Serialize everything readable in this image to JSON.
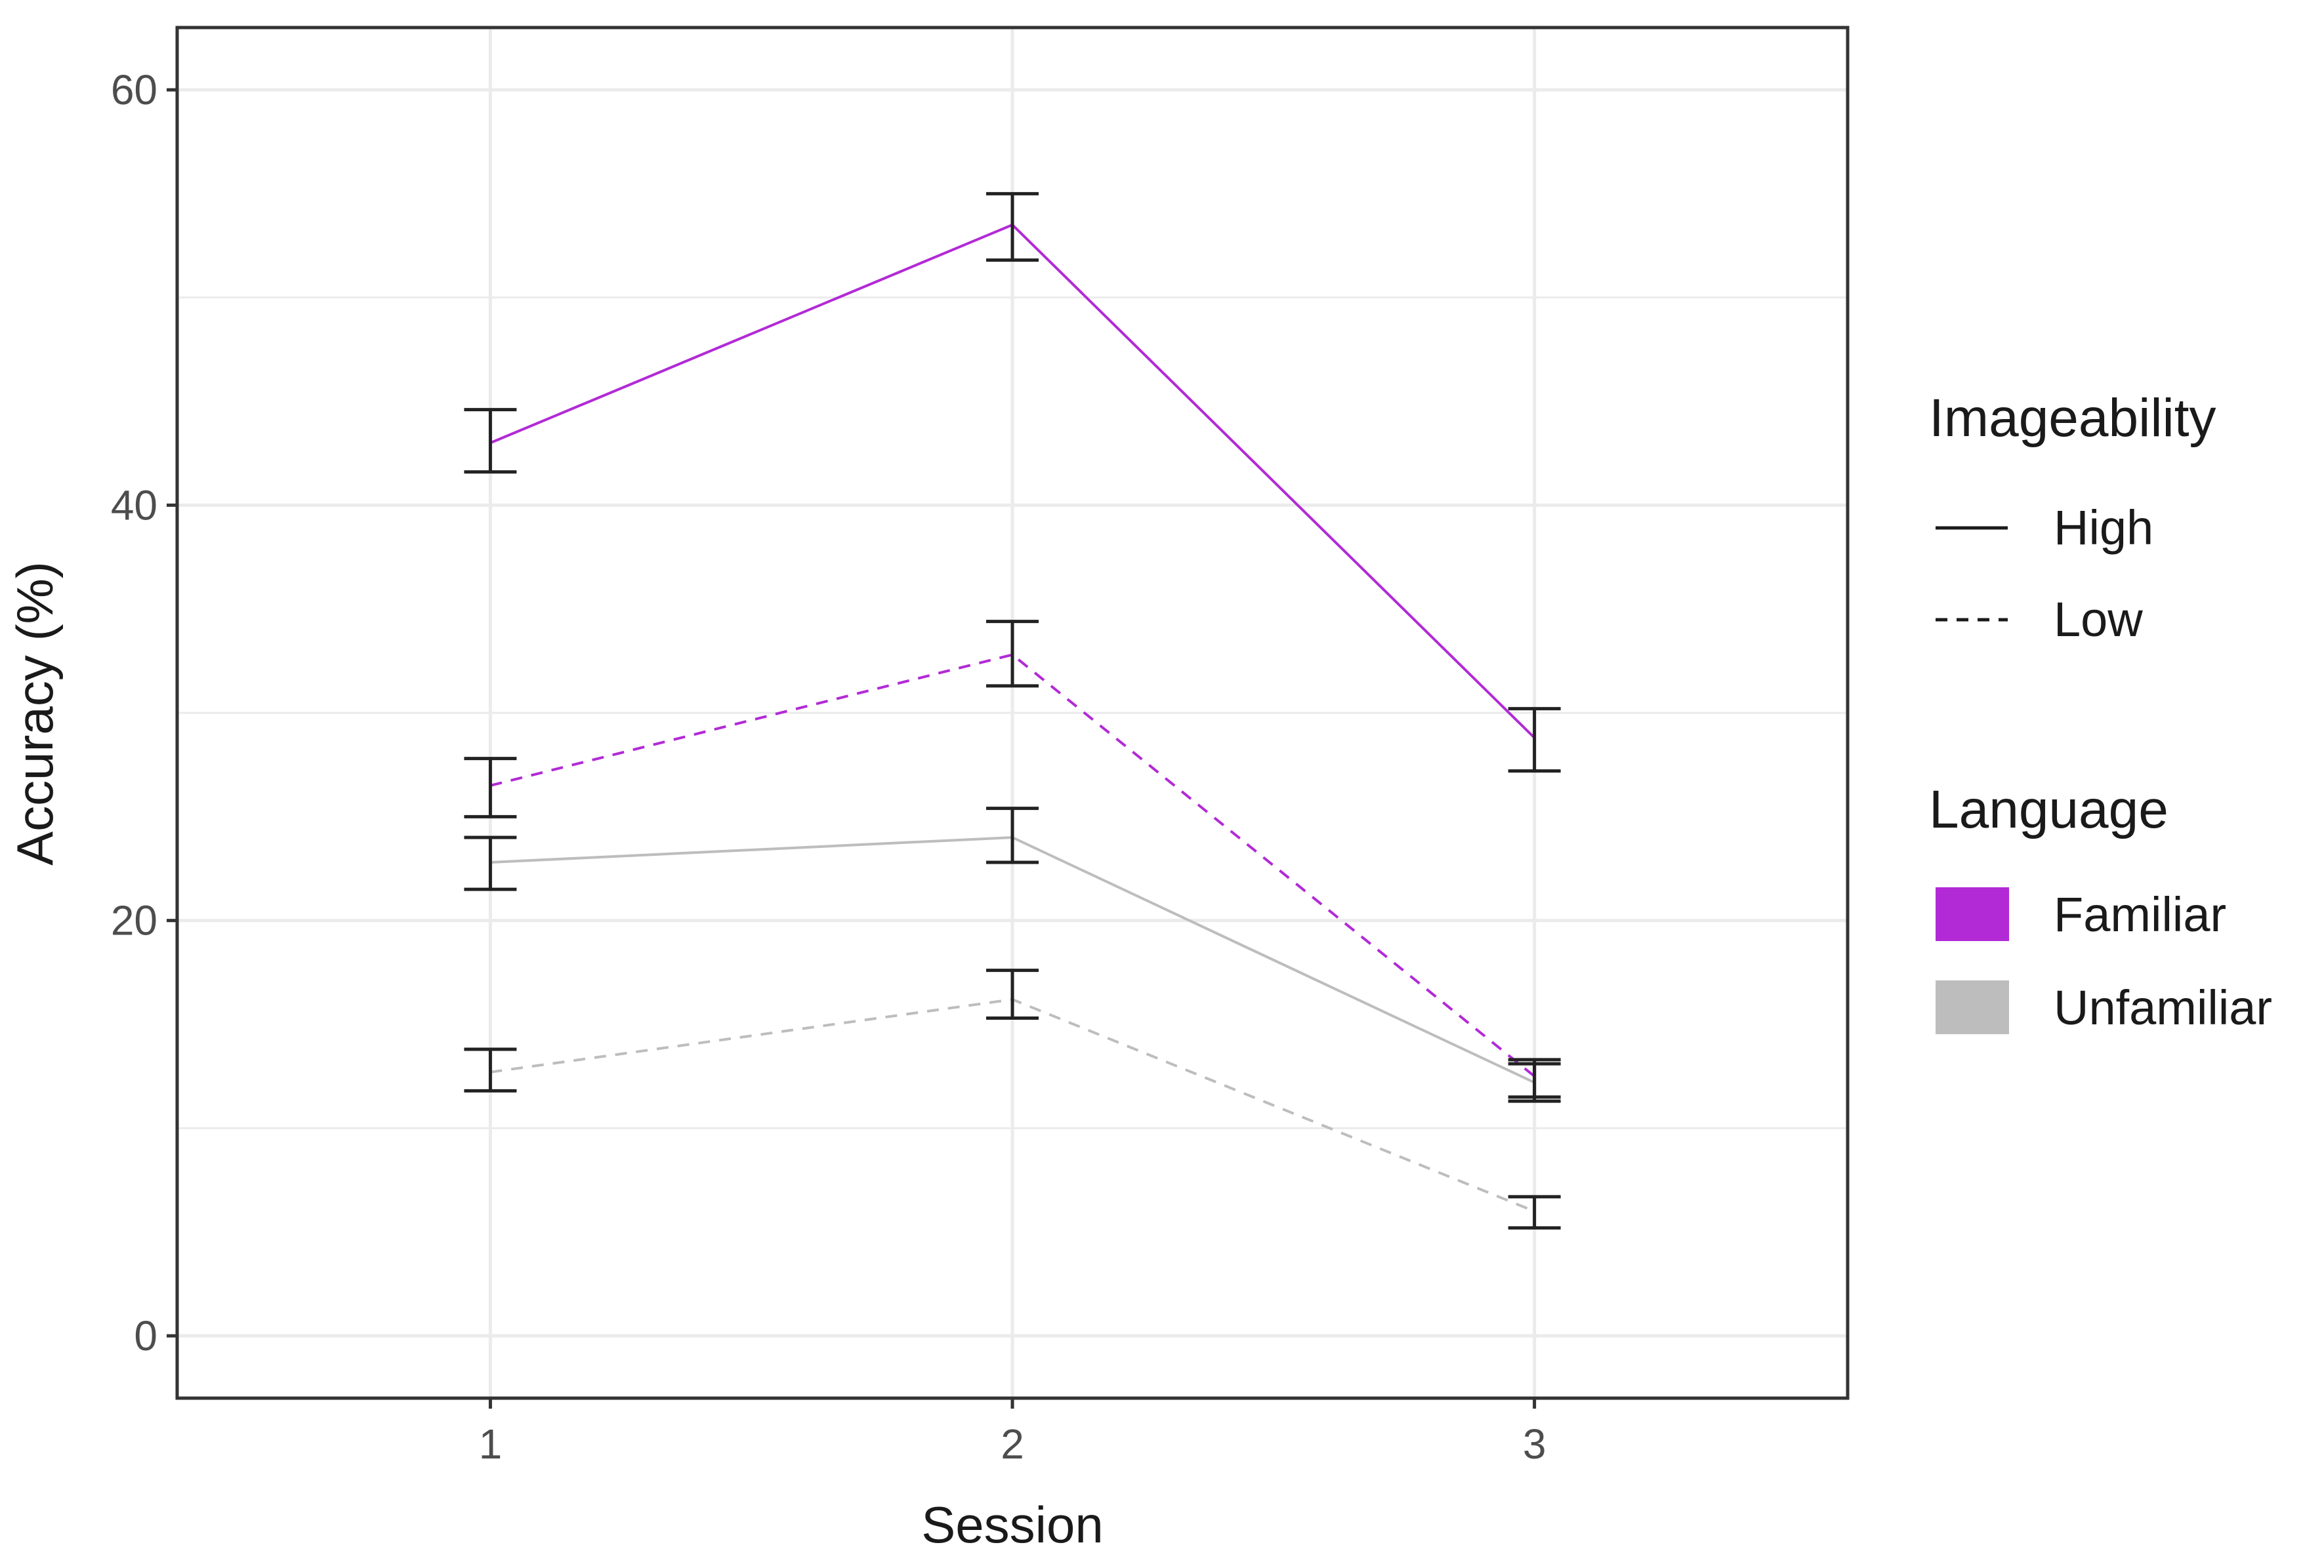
{
  "chart_data": {
    "type": "line",
    "title": "",
    "xlabel": "Session",
    "ylabel": "Accuracy (%)",
    "categories": [
      "1",
      "2",
      "3"
    ],
    "x": [
      1,
      2,
      3
    ],
    "xlim": [
      0.4,
      3.6
    ],
    "ylim": [
      -3,
      63
    ],
    "yticks": [
      0,
      20,
      40,
      60
    ],
    "ytick_labels": [
      "0",
      "20",
      "40",
      "60"
    ],
    "xtick_labels": [
      "1",
      "2",
      "3"
    ],
    "grid": true,
    "legend_position": "right",
    "colors": {
      "Familiar": "#b22ad6",
      "Unfamiliar": "#bdbdbd",
      "errorbar": "#222222",
      "grid": "#ebebeb",
      "panel_border": "#333333"
    },
    "series": [
      {
        "name": "Familiar - High",
        "language": "Familiar",
        "imageability": "High",
        "linetype": "solid",
        "values": [
          43.0,
          53.5,
          28.8
        ],
        "error_low": [
          41.6,
          51.8,
          27.2
        ],
        "error_high": [
          44.6,
          55.0,
          30.2
        ]
      },
      {
        "name": "Familiar - Low",
        "language": "Familiar",
        "imageability": "Low",
        "linetype": "dashed",
        "values": [
          26.5,
          32.8,
          12.5
        ],
        "error_low": [
          25.0,
          31.3,
          11.5
        ],
        "error_high": [
          27.8,
          34.4,
          13.3
        ]
      },
      {
        "name": "Unfamiliar - High",
        "language": "Unfamiliar",
        "imageability": "High",
        "linetype": "solid",
        "values": [
          22.8,
          24.0,
          12.2
        ],
        "error_low": [
          21.5,
          22.8,
          11.3
        ],
        "error_high": [
          24.0,
          25.4,
          13.1
        ]
      },
      {
        "name": "Unfamiliar - Low",
        "language": "Unfamiliar",
        "imageability": "Low",
        "linetype": "dashed",
        "values": [
          12.7,
          16.2,
          6.0
        ],
        "error_low": [
          11.8,
          15.3,
          5.2
        ],
        "error_high": [
          13.8,
          17.6,
          6.7
        ]
      }
    ],
    "legend": {
      "imageability": {
        "title": "Imageability",
        "items": [
          {
            "label": "High",
            "linetype": "solid"
          },
          {
            "label": "Low",
            "linetype": "dashed"
          }
        ]
      },
      "language": {
        "title": "Language",
        "items": [
          {
            "label": "Familiar",
            "color": "#b22ad6"
          },
          {
            "label": "Unfamiliar",
            "color": "#bdbdbd"
          }
        ]
      }
    }
  }
}
